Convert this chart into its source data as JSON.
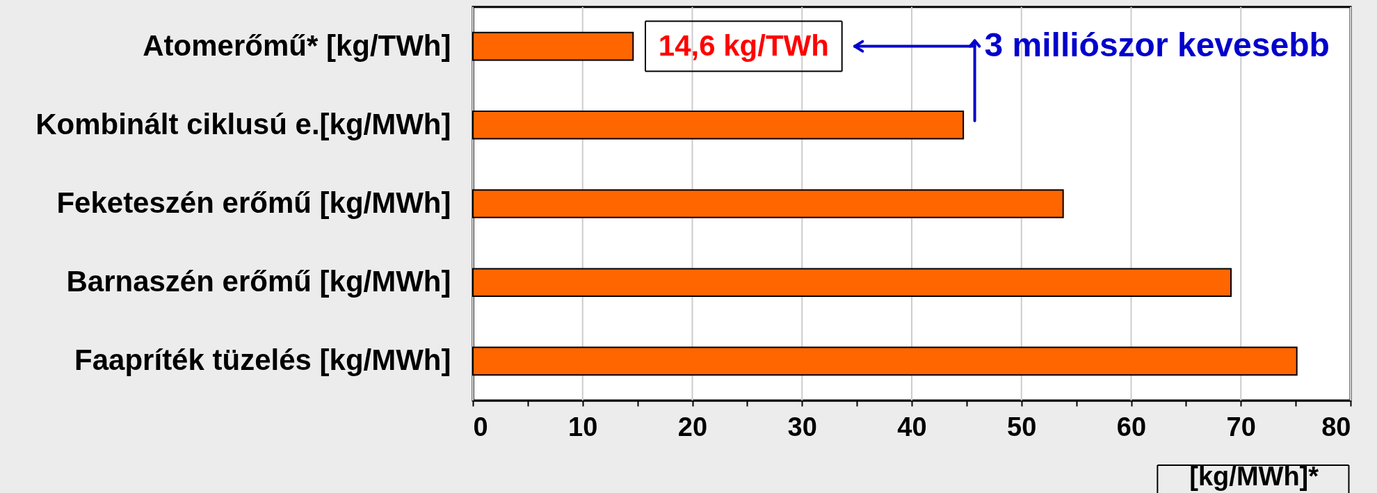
{
  "chart_data": {
    "type": "bar",
    "orientation": "horizontal",
    "categories": [
      "Atomerőmű* [kg/TWh]",
      "Kombinált ciklusú e.[kg/MWh]",
      "Feketeszén erőmű [kg/MWh]",
      "Barnaszén erőmű [kg/MWh]",
      "Faapríték tüzelés [kg/MWh]"
    ],
    "values": [
      14.6,
      44.7,
      53.8,
      69.1,
      75.1
    ],
    "color": "#ff6600",
    "value_labels": [
      "14,6 kg/TWh",
      null,
      null,
      null,
      null
    ],
    "xlabel": "[kg/MWh]*",
    "xlim": [
      0,
      80
    ],
    "xticks": [
      0,
      {
        "value": 5,
        "label": null
      },
      10,
      {
        "value": 15,
        "label": null
      },
      20,
      {
        "value": 25,
        "label": null
      },
      30,
      {
        "value": 35,
        "label": null
      },
      40,
      {
        "value": 45,
        "label": null
      },
      50,
      {
        "value": 55,
        "label": null
      },
      60,
      {
        "value": 65,
        "label": null
      },
      70,
      {
        "value": 75,
        "label": null
      },
      80
    ],
    "grid": "x",
    "annotations": [
      "3 milliószor kevesebb"
    ]
  }
}
